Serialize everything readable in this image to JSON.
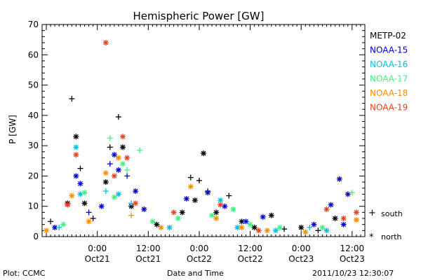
{
  "chart_data": {
    "type": "scatter",
    "title": "Hemispheric Power [GW]",
    "ylabel": "P [GW]",
    "xlabel": "Date and Time",
    "ylim": [
      0,
      70
    ],
    "yticks": [
      0,
      10,
      20,
      30,
      40,
      50,
      60,
      70
    ],
    "xlim": [
      "2011-10-20T11:00",
      "2011-10-23T15:00"
    ],
    "xticks": [
      {
        "time": "2011-10-21T00:00",
        "line1": "0:00",
        "line2": "Oct21"
      },
      {
        "time": "2011-10-21T12:00",
        "line1": "12:00",
        "line2": "Oct21"
      },
      {
        "time": "2011-10-22T00:00",
        "line1": "0:00",
        "line2": "Oct22"
      },
      {
        "time": "2011-10-22T12:00",
        "line1": "12:00",
        "line2": "Oct22"
      },
      {
        "time": "2011-10-23T00:00",
        "line1": "0:00",
        "line2": "Oct23"
      },
      {
        "time": "2011-10-23T12:00",
        "line1": "12:00",
        "line2": "Oct23"
      }
    ],
    "grid": false,
    "legend_position": "right",
    "series": [
      {
        "name": "METP-02",
        "color": "#000000",
        "points": [
          {
            "t": "2011-10-20T13:00",
            "y": 5,
            "h": "south"
          },
          {
            "t": "2011-10-20T17:00",
            "y": 11,
            "h": "north"
          },
          {
            "t": "2011-10-20T18:00",
            "y": 45.5,
            "h": "south"
          },
          {
            "t": "2011-10-20T19:00",
            "y": 33,
            "h": "north"
          },
          {
            "t": "2011-10-20T20:00",
            "y": 22.5,
            "h": "south"
          },
          {
            "t": "2011-10-20T21:00",
            "y": 11,
            "h": "north"
          },
          {
            "t": "2011-10-20T23:00",
            "y": 6,
            "h": "south"
          },
          {
            "t": "2011-10-21T02:00",
            "y": 18,
            "h": "north"
          },
          {
            "t": "2011-10-21T03:00",
            "y": 29.5,
            "h": "south"
          },
          {
            "t": "2011-10-21T05:00",
            "y": 39.5,
            "h": "south"
          },
          {
            "t": "2011-10-21T06:00",
            "y": 29.5,
            "h": "north"
          },
          {
            "t": "2011-10-21T08:00",
            "y": 10,
            "h": "north"
          },
          {
            "t": "2011-10-21T14:00",
            "y": 4,
            "h": "north"
          },
          {
            "t": "2011-10-21T20:00",
            "y": 8,
            "h": "north"
          },
          {
            "t": "2011-10-21T22:00",
            "y": 19.5,
            "h": "south"
          },
          {
            "t": "2011-10-21T23:00",
            "y": 12,
            "h": "north"
          },
          {
            "t": "2011-10-22T00:00",
            "y": 18.5,
            "h": "south"
          },
          {
            "t": "2011-10-22T01:00",
            "y": 27.5,
            "h": "north"
          },
          {
            "t": "2011-10-22T02:00",
            "y": 15,
            "h": "south"
          },
          {
            "t": "2011-10-22T04:00",
            "y": 8,
            "h": "north"
          },
          {
            "t": "2011-10-22T07:00",
            "y": 13.5,
            "h": "south"
          },
          {
            "t": "2011-10-22T10:00",
            "y": 5,
            "h": "north"
          },
          {
            "t": "2011-10-22T13:00",
            "y": 3,
            "h": "north"
          },
          {
            "t": "2011-10-22T17:00",
            "y": 7,
            "h": "north"
          },
          {
            "t": "2011-10-22T20:00",
            "y": 2.5,
            "h": "south"
          },
          {
            "t": "2011-10-23T00:00",
            "y": 3,
            "h": "north"
          },
          {
            "t": "2011-10-23T04:00",
            "y": 2,
            "h": "south"
          },
          {
            "t": "2011-10-23T08:00",
            "y": 6,
            "h": "north"
          }
        ]
      },
      {
        "name": "NOAA-15",
        "color": "#0000c8",
        "points": [
          {
            "t": "2011-10-20T14:00",
            "y": 3,
            "h": "north"
          },
          {
            "t": "2011-10-20T19:00",
            "y": 20,
            "h": "north"
          },
          {
            "t": "2011-10-20T20:00",
            "y": 17.5,
            "h": "north"
          },
          {
            "t": "2011-10-20T22:00",
            "y": 8,
            "h": "south"
          },
          {
            "t": "2011-10-21T01:00",
            "y": 10,
            "h": "north"
          },
          {
            "t": "2011-10-21T03:00",
            "y": 24,
            "h": "south"
          },
          {
            "t": "2011-10-21T04:00",
            "y": 27,
            "h": "north"
          },
          {
            "t": "2011-10-21T05:00",
            "y": 22,
            "h": "north"
          },
          {
            "t": "2011-10-21T07:00",
            "y": 20,
            "h": "south"
          },
          {
            "t": "2011-10-21T09:00",
            "y": 15,
            "h": "north"
          },
          {
            "t": "2011-10-21T11:00",
            "y": 9,
            "h": "north"
          },
          {
            "t": "2011-10-21T21:00",
            "y": 12.5,
            "h": "north"
          },
          {
            "t": "2011-10-22T02:00",
            "y": 14.5,
            "h": "north"
          },
          {
            "t": "2011-10-22T06:00",
            "y": 10,
            "h": "north"
          },
          {
            "t": "2011-10-22T11:00",
            "y": 5,
            "h": "north"
          },
          {
            "t": "2011-10-22T15:00",
            "y": 6.5,
            "h": "north"
          },
          {
            "t": "2011-10-23T03:00",
            "y": 4,
            "h": "north"
          },
          {
            "t": "2011-10-23T07:00",
            "y": 10.5,
            "h": "north"
          },
          {
            "t": "2011-10-23T09:00",
            "y": 19,
            "h": "north"
          },
          {
            "t": "2011-10-23T10:00",
            "y": 4,
            "h": "north"
          },
          {
            "t": "2011-10-23T11:00",
            "y": 14,
            "h": "north"
          }
        ]
      },
      {
        "name": "NOAA-16",
        "color": "#00bfdf",
        "points": [
          {
            "t": "2011-10-20T15:00",
            "y": 3,
            "h": "south"
          },
          {
            "t": "2011-10-20T19:00",
            "y": 29.5,
            "h": "north"
          },
          {
            "t": "2011-10-20T20:00",
            "y": 14,
            "h": "north"
          },
          {
            "t": "2011-10-21T02:00",
            "y": 15,
            "h": "south"
          },
          {
            "t": "2011-10-21T05:00",
            "y": 14,
            "h": "north"
          },
          {
            "t": "2011-10-21T08:00",
            "y": 11,
            "h": "south"
          },
          {
            "t": "2011-10-21T17:00",
            "y": 3,
            "h": "north"
          },
          {
            "t": "2011-10-22T05:00",
            "y": 12,
            "h": "north"
          },
          {
            "t": "2011-10-22T09:00",
            "y": 3,
            "h": "north"
          },
          {
            "t": "2011-10-22T18:00",
            "y": 2,
            "h": "north"
          },
          {
            "t": "2011-10-23T02:00",
            "y": 3,
            "h": "south"
          },
          {
            "t": "2011-10-23T06:00",
            "y": 2,
            "h": "north"
          }
        ]
      },
      {
        "name": "NOAA-17",
        "color": "#3ff07f",
        "points": [
          {
            "t": "2011-10-20T16:00",
            "y": 4,
            "h": "north"
          },
          {
            "t": "2011-10-20T21:00",
            "y": 14.5,
            "h": "north"
          },
          {
            "t": "2011-10-21T03:00",
            "y": 32.5,
            "h": "south"
          },
          {
            "t": "2011-10-21T04:00",
            "y": 13,
            "h": "north"
          },
          {
            "t": "2011-10-21T06:00",
            "y": 24,
            "h": "north"
          },
          {
            "t": "2011-10-21T07:00",
            "y": 22,
            "h": "south"
          },
          {
            "t": "2011-10-21T10:00",
            "y": 28.5,
            "h": "south"
          },
          {
            "t": "2011-10-21T13:00",
            "y": 5,
            "h": "north"
          },
          {
            "t": "2011-10-21T19:00",
            "y": 6,
            "h": "north"
          },
          {
            "t": "2011-10-22T03:00",
            "y": 7,
            "h": "north"
          },
          {
            "t": "2011-10-22T08:00",
            "y": 9,
            "h": "north"
          },
          {
            "t": "2011-10-22T12:00",
            "y": 4,
            "h": "north"
          },
          {
            "t": "2011-10-22T19:00",
            "y": 3,
            "h": "north"
          },
          {
            "t": "2011-10-23T05:00",
            "y": 3,
            "h": "north"
          },
          {
            "t": "2011-10-23T12:00",
            "y": 14.5,
            "h": "south"
          }
        ]
      },
      {
        "name": "NOAA-18",
        "color": "#ff8c00",
        "points": [
          {
            "t": "2011-10-20T12:00",
            "y": 2,
            "h": "north"
          },
          {
            "t": "2011-10-20T18:00",
            "y": 13.5,
            "h": "north"
          },
          {
            "t": "2011-10-20T22:00",
            "y": 5,
            "h": "north"
          },
          {
            "t": "2011-10-21T02:00",
            "y": 21,
            "h": "north"
          },
          {
            "t": "2011-10-21T05:00",
            "y": 26,
            "h": "north"
          },
          {
            "t": "2011-10-21T08:00",
            "y": 7,
            "h": "south"
          },
          {
            "t": "2011-10-21T15:00",
            "y": 3,
            "h": "north"
          },
          {
            "t": "2011-10-21T22:00",
            "y": 16.5,
            "h": "north"
          },
          {
            "t": "2011-10-22T04:00",
            "y": 6,
            "h": "north"
          },
          {
            "t": "2011-10-22T10:00",
            "y": 3,
            "h": "north"
          },
          {
            "t": "2011-10-22T16:00",
            "y": 2,
            "h": "north"
          },
          {
            "t": "2011-10-23T01:00",
            "y": 1.5,
            "h": "north"
          },
          {
            "t": "2011-10-23T13:00",
            "y": 5.5,
            "h": "north"
          }
        ]
      },
      {
        "name": "NOAA-19",
        "color": "#e8401c",
        "points": [
          {
            "t": "2011-10-20T17:00",
            "y": 10.5,
            "h": "north"
          },
          {
            "t": "2011-10-20T19:00",
            "y": 27,
            "h": "north"
          },
          {
            "t": "2011-10-21T02:00",
            "y": 64,
            "h": "north"
          },
          {
            "t": "2011-10-21T04:00",
            "y": 20,
            "h": "north"
          },
          {
            "t": "2011-10-21T06:00",
            "y": 33,
            "h": "north"
          },
          {
            "t": "2011-10-21T07:00",
            "y": 26,
            "h": "north"
          },
          {
            "t": "2011-10-21T09:00",
            "y": 11,
            "h": "north"
          },
          {
            "t": "2011-10-21T18:00",
            "y": 8,
            "h": "north"
          },
          {
            "t": "2011-10-22T05:00",
            "y": 10.5,
            "h": "north"
          },
          {
            "t": "2011-10-22T14:00",
            "y": 2,
            "h": "north"
          },
          {
            "t": "2011-10-23T06:00",
            "y": 9,
            "h": "north"
          },
          {
            "t": "2011-10-23T10:00",
            "y": 6,
            "h": "north"
          },
          {
            "t": "2011-10-23T13:00",
            "y": 8,
            "h": "north"
          }
        ]
      }
    ]
  },
  "symbol_legend": {
    "south_glyph": "+",
    "south_label": "south",
    "north_glyph": "*",
    "north_label": "north"
  },
  "footer": {
    "left": "Plot: CCMC",
    "center": "Date and Time",
    "right": "2011/10/23 12:30:07"
  }
}
